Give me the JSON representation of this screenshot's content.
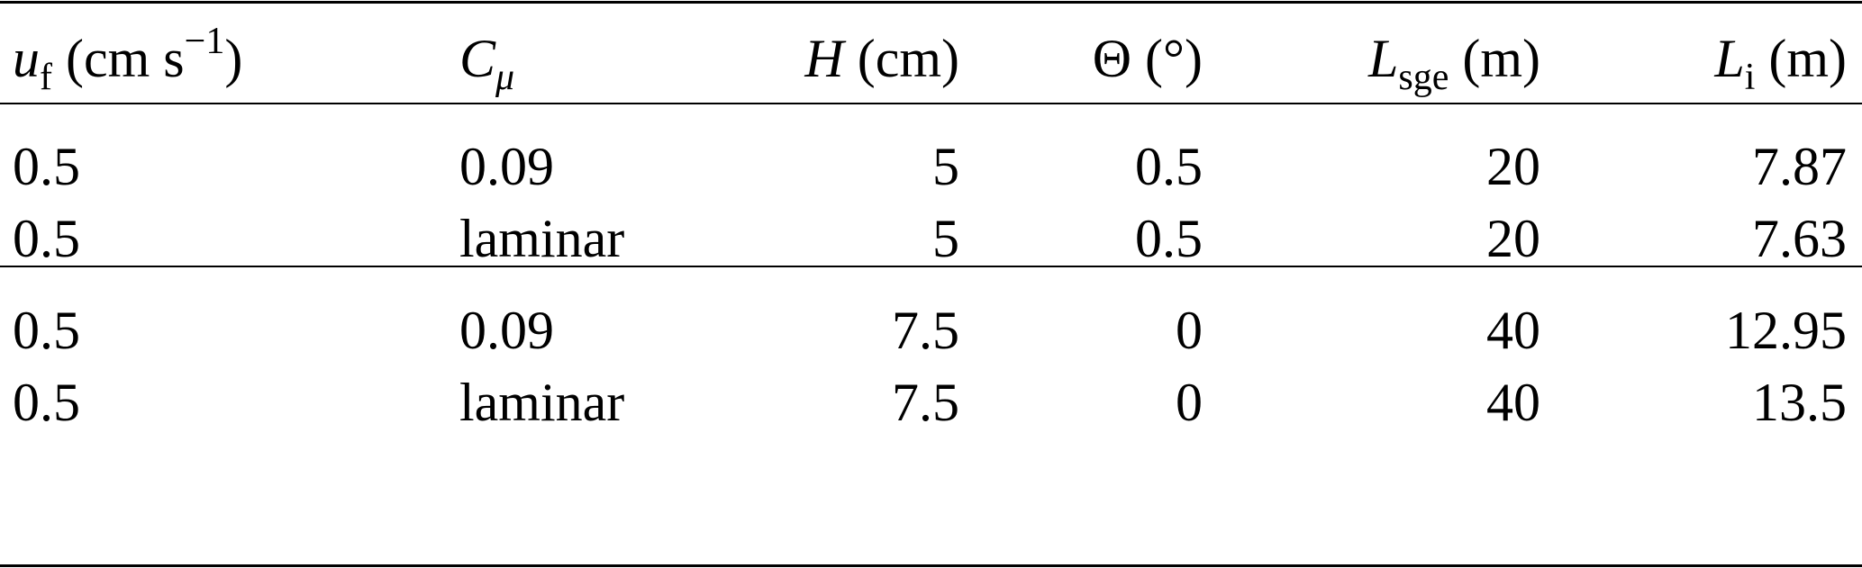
{
  "header": [
    {
      "symbol": "u",
      "sub": "f",
      "unit_open": " (cm s",
      "unit_sup": "−1",
      "unit_close": ")"
    },
    {
      "symbol": "C",
      "sub": "μ",
      "unit_open": "",
      "unit_sup": "",
      "unit_close": ""
    },
    {
      "symbol": "H",
      "sub": "",
      "unit_open": " (cm)",
      "unit_sup": "",
      "unit_close": ""
    },
    {
      "symbol": "Θ",
      "sub": "",
      "unit_open": " (°)",
      "unit_sup": "",
      "unit_close": ""
    },
    {
      "symbol": "L",
      "sub": "sge",
      "unit_open": " (m)",
      "unit_sup": "",
      "unit_close": ""
    },
    {
      "symbol": "L",
      "sub": "i",
      "unit_open": " (m)",
      "unit_sup": "",
      "unit_close": ""
    }
  ],
  "rows": [
    [
      "0.5",
      "0.09",
      "5",
      "0.5",
      "20",
      "7.87"
    ],
    [
      "0.5",
      "laminar",
      "5",
      "0.5",
      "20",
      "7.63"
    ],
    [
      "0.5",
      "0.09",
      "7.5",
      "0",
      "40",
      "12.95"
    ],
    [
      "0.5",
      "laminar",
      "7.5",
      "0",
      "40",
      "13.5"
    ]
  ]
}
